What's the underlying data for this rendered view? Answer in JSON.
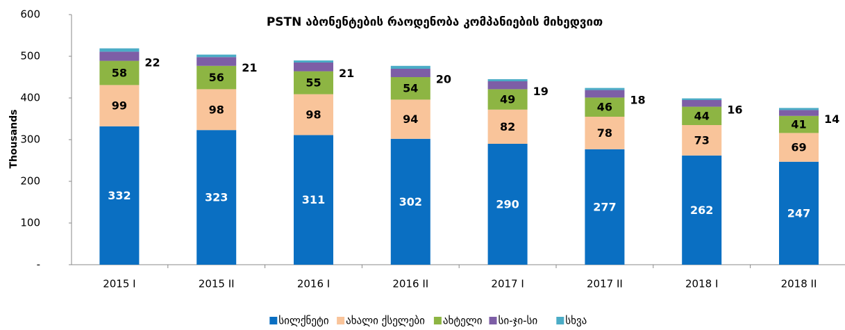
{
  "chart_data": {
    "type": "stacked_bar",
    "title": "PSTN აბონენტების რაოდენობა კომპანიების მიხედვით",
    "y_label": "Thousands",
    "categories": [
      "2015 I",
      "2015 II",
      "2016 I",
      "2016 II",
      "2017 I",
      "2017 II",
      "2018 I",
      "2018 II"
    ],
    "series": [
      {
        "name": "სილქნეტი",
        "color": "#0a6fc2",
        "values": [
          332,
          323,
          311,
          302,
          290,
          277,
          262,
          247
        ],
        "labels": "inside",
        "label_color": "#ffffff"
      },
      {
        "name": "ახალი ქსელები",
        "color": "#f9c49a",
        "values": [
          99,
          98,
          98,
          94,
          82,
          78,
          73,
          69
        ],
        "labels": "inside",
        "label_color": "#000000"
      },
      {
        "name": "ახტელი",
        "color": "#8db543",
        "values": [
          58,
          56,
          55,
          54,
          49,
          46,
          44,
          41
        ],
        "labels": "inside",
        "label_color": "#000000"
      },
      {
        "name": "სი-ჯი-სი",
        "color": "#7d5ea6",
        "values": [
          22,
          21,
          21,
          20,
          19,
          18,
          16,
          14
        ],
        "labels": "outside",
        "label_color": "#000000"
      },
      {
        "name": "სხვა",
        "color": "#4bacc6",
        "values": [
          8,
          6,
          5,
          7,
          5,
          5,
          4,
          5
        ]
      }
    ],
    "ylim": [
      0,
      600
    ],
    "yticks": [
      {
        "value": 0,
        "label": "-"
      },
      100,
      200,
      300,
      400,
      500,
      600
    ],
    "grid": false,
    "legend": "bottom"
  }
}
